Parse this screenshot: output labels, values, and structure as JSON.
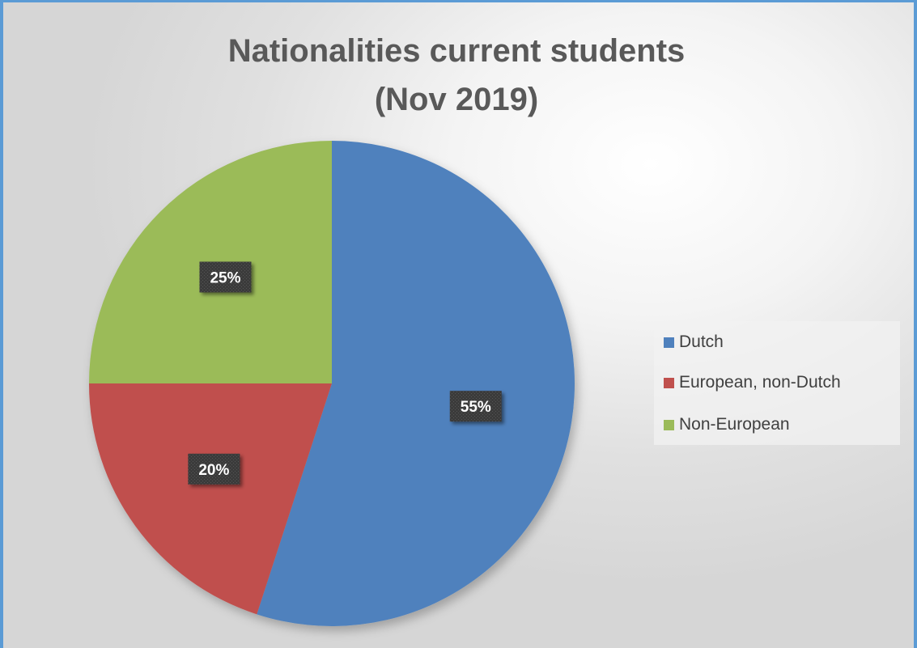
{
  "chart_data": {
    "type": "pie",
    "title_lines": [
      "Nationalities current students",
      "(Nov 2019)"
    ],
    "categories": [
      "Dutch",
      "European, non-Dutch",
      "Non-European"
    ],
    "values": [
      55,
      20,
      25
    ],
    "labels": [
      "55%",
      "20%",
      "25%"
    ],
    "colors": [
      "#4f81bd",
      "#c0504d",
      "#9bbb59"
    ],
    "legend_position": "right"
  }
}
